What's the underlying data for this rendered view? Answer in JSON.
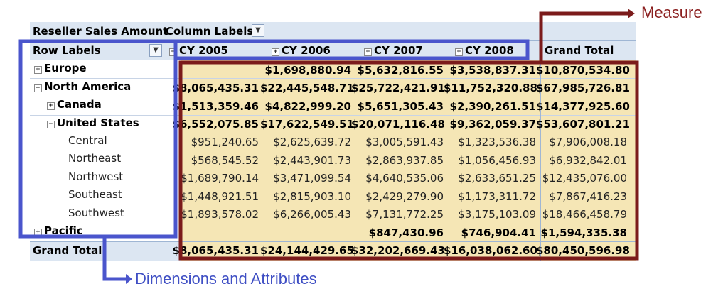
{
  "pivot": {
    "corner_title": "Reseller Sales Amount",
    "column_labels": "Column Labels",
    "row_labels": "Row Labels",
    "grand_total_header": "Grand Total",
    "columns": [
      "CY 2005",
      "CY 2006",
      "CY 2007",
      "CY 2008"
    ],
    "rows": [
      {
        "label": "Europe",
        "toggle": "+",
        "bold": true,
        "values": [
          "",
          "$1,698,880.94",
          "$5,632,816.55",
          "$3,538,837.31",
          "$10,870,534.80"
        ]
      },
      {
        "label": "North America",
        "toggle": "−",
        "bold": true,
        "values": [
          "$8,065,435.31",
          "$22,445,548.71",
          "$25,722,421.91",
          "$11,752,320.88",
          "$67,985,726.81"
        ]
      },
      {
        "label": "Canada",
        "toggle": "+",
        "bold": true,
        "values": [
          "$1,513,359.46",
          "$4,822,999.20",
          "$5,651,305.43",
          "$2,390,261.51",
          "$14,377,925.60"
        ]
      },
      {
        "label": "United States",
        "toggle": "−",
        "bold": true,
        "values": [
          "$6,552,075.85",
          "$17,622,549.51",
          "$20,071,116.48",
          "$9,362,059.37",
          "$53,607,801.21"
        ]
      },
      {
        "label": "Central",
        "toggle": "",
        "bold": false,
        "values": [
          "$951,240.65",
          "$2,625,639.72",
          "$3,005,591.43",
          "$1,323,536.38",
          "$7,906,008.18"
        ]
      },
      {
        "label": "Northeast",
        "toggle": "",
        "bold": false,
        "values": [
          "$568,545.52",
          "$2,443,901.73",
          "$2,863,937.85",
          "$1,056,456.93",
          "$6,932,842.01"
        ]
      },
      {
        "label": "Northwest",
        "toggle": "",
        "bold": false,
        "values": [
          "$1,689,790.14",
          "$3,471,099.54",
          "$4,640,535.06",
          "$2,633,651.25",
          "$12,435,076.00"
        ]
      },
      {
        "label": "Southeast",
        "toggle": "",
        "bold": false,
        "values": [
          "$1,448,921.51",
          "$2,815,903.10",
          "$2,429,279.90",
          "$1,173,311.72",
          "$7,867,416.23"
        ]
      },
      {
        "label": "Southwest",
        "toggle": "",
        "bold": false,
        "values": [
          "$1,893,578.02",
          "$6,266,005.43",
          "$7,131,772.25",
          "$3,175,103.09",
          "$18,466,458.79"
        ]
      },
      {
        "label": "Pacific",
        "toggle": "+",
        "bold": true,
        "values": [
          "",
          "",
          "$847,430.96",
          "$746,904.41",
          "$1,594,335.38"
        ]
      }
    ],
    "grand_total_row": {
      "label": "Grand Total",
      "values": [
        "$8,065,435.31",
        "$24,144,429.65",
        "$32,202,669.43",
        "$16,038,062.60",
        "$80,450,596.98"
      ]
    }
  },
  "callouts": {
    "measure": "Measure",
    "dimensions": "Dimensions and Attributes"
  },
  "colors": {
    "header_blue": "#dce6f2",
    "measure_fill": "#f5e6b5",
    "dimension_box": "#4a55cc",
    "measure_box": "#7b1b1b",
    "callout_dimension_text": "#3f4fc4",
    "callout_measure_text": "#8b1f1f"
  }
}
